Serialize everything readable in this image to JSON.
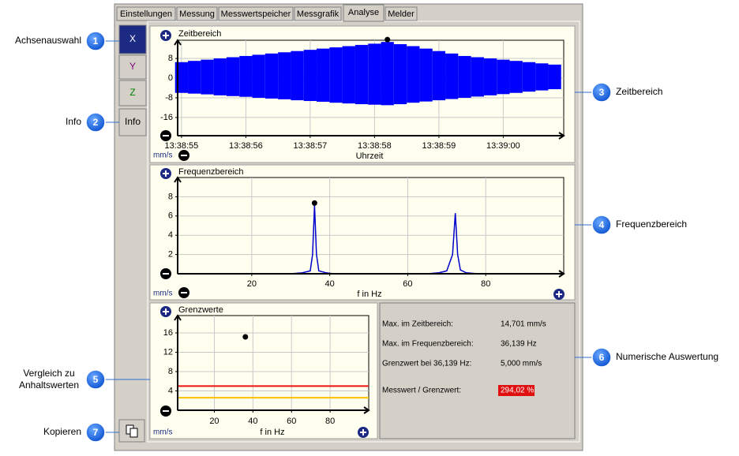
{
  "tabs": [
    "Einstellungen",
    "Messung",
    "Messwertspeicher",
    "Messgrafik",
    "Analyse",
    "Melder"
  ],
  "toolbar": [
    "X",
    "Y",
    "Z",
    "Info"
  ],
  "callouts": [
    {
      "number": "1",
      "label": "Achsenauswahl"
    },
    {
      "number": "2",
      "label": "Info"
    },
    {
      "number": "3",
      "label": "Zeitbereich"
    },
    {
      "number": "4",
      "label": "Frequenzbereich"
    },
    {
      "number": "5",
      "label": "Vergleich zu Anhaltswerten"
    },
    {
      "number": "6",
      "label": "Numerische Auswertung"
    },
    {
      "number": "7",
      "label": "Kopieren"
    }
  ],
  "charts": [
    {
      "type": "band",
      "title": "Zeitbereich",
      "y_unit": "mm/s",
      "x_label": "Uhrzeit",
      "xlim": [
        54.94,
        60.94
      ],
      "ylim": [
        -23.4,
        15.4
      ],
      "xticks": [
        {
          "value": 55,
          "label": "13:38:55"
        },
        {
          "value": 56,
          "label": "13:38:56"
        },
        {
          "value": 57,
          "label": "13:38:57"
        },
        {
          "value": 58,
          "label": "13:38:58"
        },
        {
          "value": 59,
          "label": "13:38:59"
        },
        {
          "value": 60,
          "label": "13:39:00"
        }
      ],
      "yticks": [
        8,
        0,
        -8,
        -16
      ],
      "grid": true,
      "color": "#0000ff",
      "x": [
        55.0,
        55.2,
        55.4,
        55.6,
        55.8,
        56.0,
        56.2,
        56.4,
        56.6,
        56.8,
        57.0,
        57.2,
        57.4,
        57.6,
        57.8,
        58.0,
        58.2,
        58.4,
        58.6,
        58.8,
        59.0,
        59.2,
        59.4,
        59.6,
        59.8,
        60.0,
        60.2,
        60.4,
        60.6,
        60.8
      ],
      "upper": [
        6.5,
        7,
        7.5,
        8,
        8.5,
        9,
        9.5,
        10,
        10.5,
        11,
        11.5,
        12,
        12.5,
        13,
        13.5,
        14,
        14.7,
        13.8,
        13,
        12,
        11,
        10,
        9,
        8.5,
        8,
        7.5,
        7,
        6.5,
        6,
        5.5
      ],
      "lower": [
        -6,
        -6.3,
        -6.6,
        -7,
        -7.3,
        -7.6,
        -8,
        -8.3,
        -8.6,
        -9,
        -9.3,
        -9.6,
        -10,
        -10.3,
        -10.6,
        -10.8,
        -11,
        -10.6,
        -10,
        -9.5,
        -9,
        -8.5,
        -8,
        -7.5,
        -7,
        -6.5,
        -6,
        -5.5,
        -5,
        -4.5
      ],
      "marker": {
        "x": 58.2,
        "y": 14.7
      }
    },
    {
      "type": "line",
      "title": "Frequenzbereich",
      "y_unit": "mm/s",
      "x_label": "f in Hz",
      "xlim": [
        1,
        100
      ],
      "ylim": [
        0,
        10
      ],
      "xticks": [
        20,
        40,
        60,
        80
      ],
      "yticks": [
        2,
        4,
        6,
        8
      ],
      "grid": true,
      "color": "#0000cc",
      "x": [
        1,
        30,
        33,
        35,
        35.6,
        36.1,
        36.6,
        37.2,
        39,
        41,
        65,
        68,
        70,
        71.5,
        72.2,
        72.8,
        73.5,
        75,
        78,
        97
      ],
      "values": [
        0,
        0,
        0.1,
        0.3,
        2,
        7.1,
        2,
        0.3,
        0.1,
        0,
        0,
        0.1,
        0.3,
        2,
        6.3,
        2,
        0.4,
        0.1,
        0,
        0
      ],
      "marker": {
        "x": 36.1,
        "y": 7.1
      }
    },
    {
      "type": "limits",
      "title": "Grenzwerte",
      "y_unit": "mm/s",
      "x_label": "f in Hz",
      "xlim": [
        1,
        100
      ],
      "ylim": [
        0,
        19.6
      ],
      "xticks": [
        20,
        40,
        60,
        80
      ],
      "yticks": [
        4,
        8,
        12,
        16
      ],
      "grid": true,
      "lines": [
        {
          "value": 5,
          "color": "#ee1111"
        },
        {
          "value": 2.6,
          "color": "#ffc000"
        }
      ],
      "marker": {
        "x": 36.1,
        "y": 14.7
      }
    }
  ],
  "evaluation": {
    "rows": [
      {
        "label": "Max. im Zeitbereich:",
        "value": "14,701 mm/s"
      },
      {
        "label": "Max. im Frequenzbereich:",
        "value": "36,139 Hz"
      },
      {
        "label": "Grenzwert bei 36,139 Hz:",
        "value": "5,000 mm/s"
      },
      {
        "label": "Messwert / Grenzwert:",
        "value": "294,02 %"
      }
    ]
  }
}
